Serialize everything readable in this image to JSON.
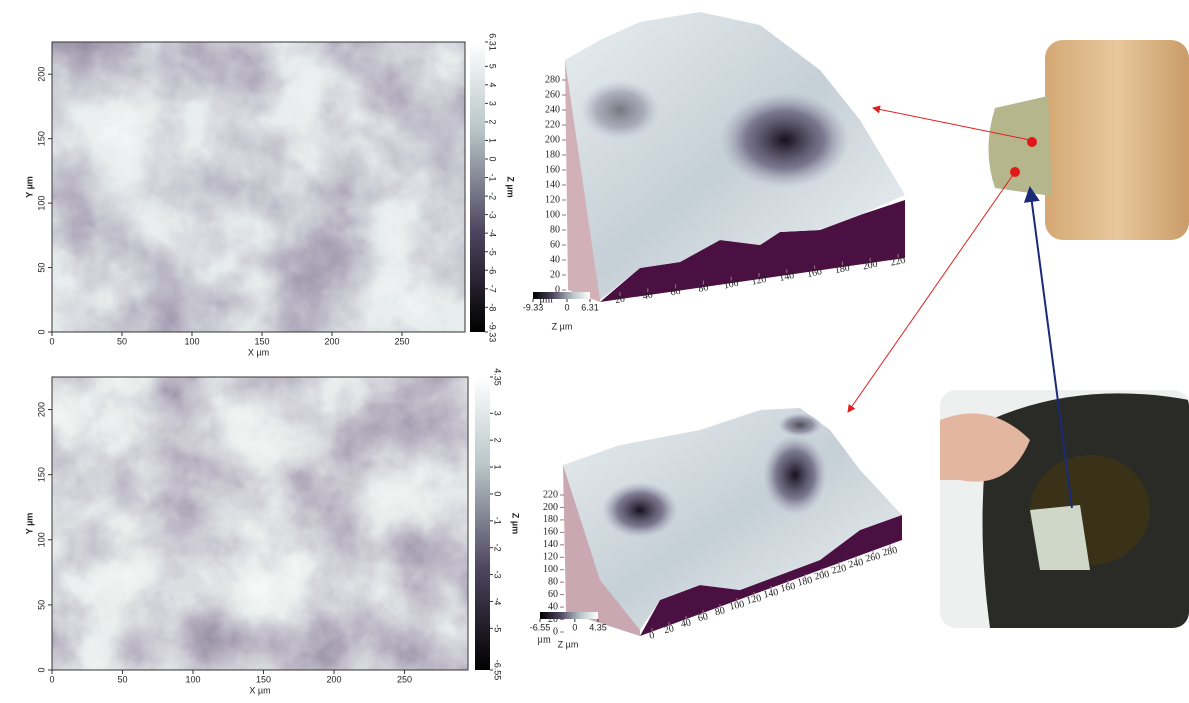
{
  "maps": [
    {
      "xlabel": "X µm",
      "ylabel": "Y µm",
      "zlabel": "Z µm",
      "xlim": [
        0,
        295
      ],
      "ylim": [
        0,
        225
      ],
      "xticks": [
        0,
        50,
        100,
        150,
        200,
        250
      ],
      "yticks": [
        0,
        50,
        100,
        150,
        200
      ],
      "zlim": [
        -9.33,
        6.31
      ],
      "zticks": [
        -9.33,
        -8,
        -7,
        -6,
        -5,
        -4,
        -3,
        -2,
        -1,
        0,
        1,
        2,
        3,
        4,
        5,
        6.31
      ]
    },
    {
      "xlabel": "X µm",
      "ylabel": "Y µm",
      "zlabel": "Z µm",
      "xlim": [
        0,
        295
      ],
      "ylim": [
        0,
        225
      ],
      "xticks": [
        0,
        50,
        100,
        150,
        200,
        250
      ],
      "yticks": [
        0,
        50,
        100,
        150,
        200
      ],
      "zlim": [
        -6.55,
        4.35
      ],
      "zticks": [
        -6.55,
        -5,
        -4,
        -3,
        -2,
        -1,
        0,
        1,
        2,
        3,
        4.35
      ]
    }
  ],
  "surfaces": [
    {
      "unit": "µm",
      "yticks": [
        0,
        20,
        40,
        60,
        80,
        100,
        120,
        140,
        160,
        180,
        200,
        220,
        240,
        260,
        280
      ],
      "xticks": [
        20,
        40,
        60,
        80,
        100,
        120,
        140,
        160,
        180,
        200,
        220
      ],
      "zlabel": "Z µm",
      "zticks": [
        -9.33,
        0,
        6.31
      ]
    },
    {
      "unit": "µm",
      "yticks": [
        0,
        20,
        40,
        60,
        80,
        100,
        120,
        140,
        160,
        180,
        200,
        220
      ],
      "xticks": [
        0,
        20,
        40,
        60,
        80,
        100,
        120,
        140,
        160,
        180,
        200,
        220,
        240,
        260,
        280
      ],
      "zlabel": "Z µm",
      "zticks": [
        -6.55,
        0,
        4.35
      ]
    }
  ]
}
